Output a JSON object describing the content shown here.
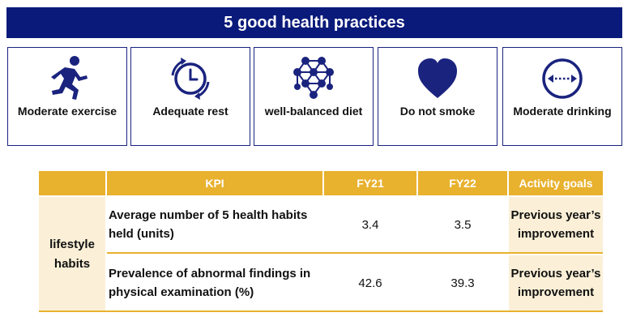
{
  "title": "5 good health practices",
  "practices": [
    {
      "label": "Moderate exercise",
      "icon": "running-person-icon"
    },
    {
      "label": "Adequate rest",
      "icon": "clock-cycle-icon"
    },
    {
      "label": "well-balanced diet",
      "icon": "molecule-icon"
    },
    {
      "label": "Do not smoke",
      "icon": "heart-icon"
    },
    {
      "label": "Moderate drinking",
      "icon": "measure-circle-icon"
    }
  ],
  "table": {
    "headers": {
      "kpi": "KPI",
      "fy21": "FY21",
      "fy22": "FY22",
      "goals": "Activity goals"
    },
    "category": "lifestyle habits",
    "rows": [
      {
        "kpi": "Average number of 5 health habits held (units)",
        "fy21": "3.4",
        "fy22": "3.5",
        "goal": "Previous year’s improvement"
      },
      {
        "kpi": "Prevalence of abnormal findings in physical examination (%)",
        "fy21": "42.6",
        "fy22": "39.3",
        "goal": "Previous year’s improvement"
      }
    ]
  },
  "colors": {
    "navy": "#0a1a7a",
    "icon_blue": "#1a237e",
    "gold": "#e8b12e",
    "cream": "#fbf0d7"
  }
}
